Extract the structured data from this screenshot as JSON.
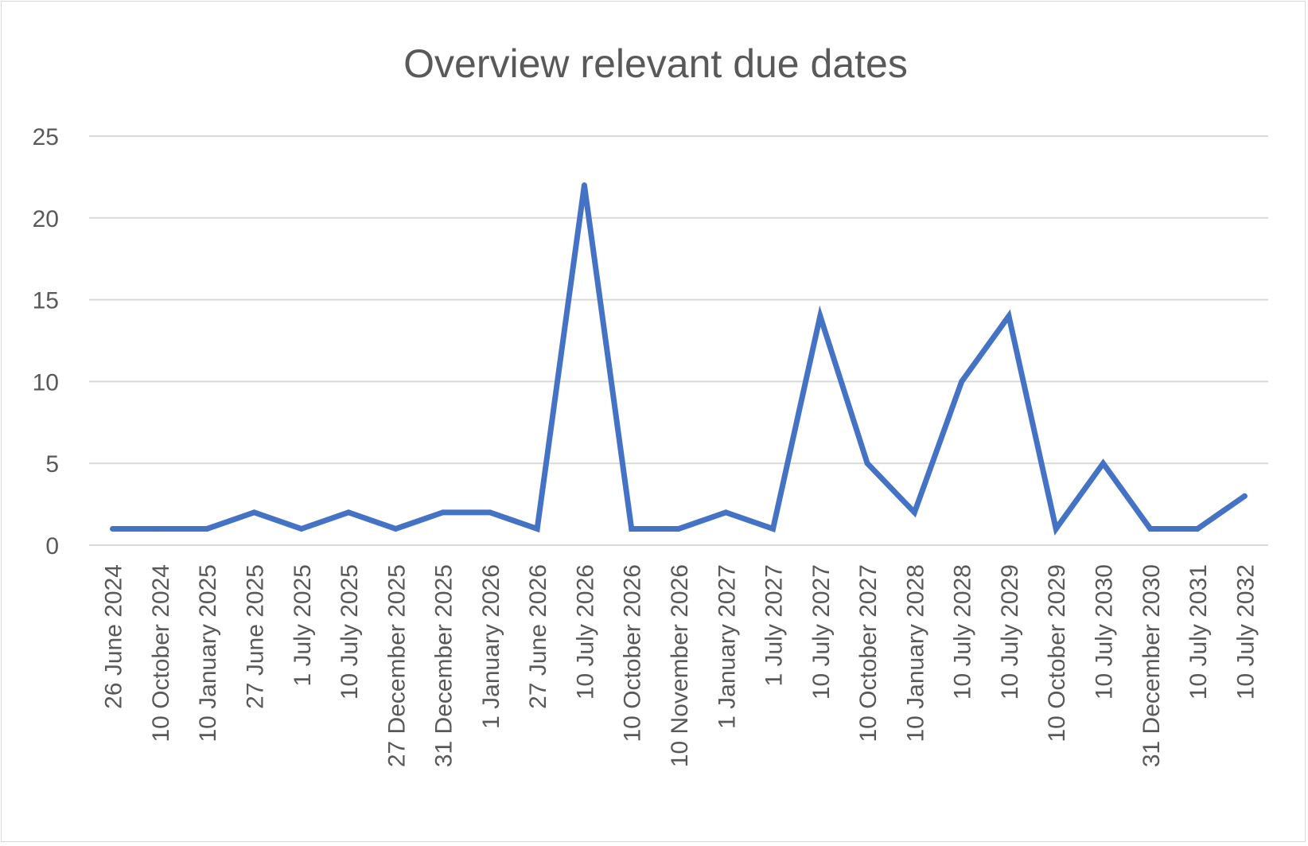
{
  "chart_data": {
    "type": "line",
    "title": "Overview relevant due dates",
    "xlabel": "",
    "ylabel": "",
    "ylim": [
      0,
      25
    ],
    "yticks": [
      "0",
      "5",
      "10",
      "15",
      "20",
      "25"
    ],
    "grid": true,
    "legend": "none",
    "categories": [
      "26 June 2024",
      "10 October 2024",
      "10 January 2025",
      "27 June 2025",
      "1 July 2025",
      "10 July 2025",
      "27 December 2025",
      "31 December 2025",
      "1 January 2026",
      "27 June 2026",
      "10 July 2026",
      "10 October 2026",
      "10 November 2026",
      "1 January 2027",
      "1 July 2027",
      "10 July 2027",
      "10 October 2027",
      "10 January 2028",
      "10 July 2028",
      "10 July 2029",
      "10 October 2029",
      "10 July 2030",
      "31 December 2030",
      "10 July 2031",
      "10 July 2032"
    ],
    "series": [
      {
        "values": [
          1,
          1,
          1,
          2,
          1,
          2,
          1,
          2,
          2,
          1,
          22,
          1,
          1,
          2,
          1,
          14,
          5,
          2,
          10,
          14,
          1,
          5,
          1,
          1,
          3
        ],
        "color": "#4472c4"
      }
    ]
  }
}
